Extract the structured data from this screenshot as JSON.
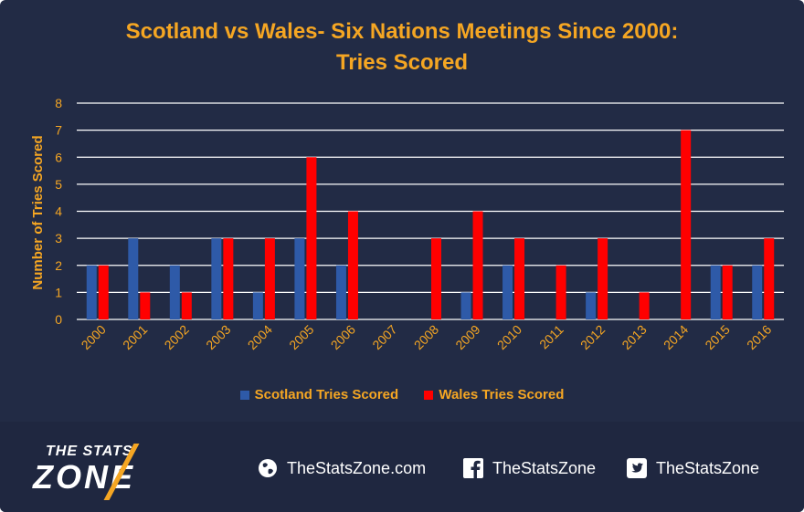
{
  "chart_data": {
    "type": "bar",
    "title": "Scotland vs Wales- Six Nations Meetings Since 2000:",
    "subtitle": "Tries Scored",
    "xlabel": "",
    "ylabel": "Number of Tries Scored",
    "ylim": [
      0,
      8
    ],
    "yticks": [
      "0",
      "1",
      "2",
      "3",
      "4",
      "5",
      "6",
      "7",
      "8"
    ],
    "categories": [
      "2000",
      "2001",
      "2002",
      "2003",
      "2004",
      "2005",
      "2006",
      "2007",
      "2008",
      "2009",
      "2010",
      "2011",
      "2012",
      "2013",
      "2014",
      "2015",
      "2016"
    ],
    "series": [
      {
        "name": "Scotland Tries Scored",
        "color": "#2e5aa8",
        "values": [
          2,
          3,
          2,
          3,
          1,
          3,
          2,
          0,
          0,
          1,
          2,
          0,
          1,
          0,
          0,
          2,
          2
        ]
      },
      {
        "name": "Wales Tries Scored",
        "color": "#ff0000",
        "values": [
          2,
          1,
          1,
          3,
          3,
          6,
          4,
          0,
          3,
          4,
          3,
          2,
          3,
          1,
          7,
          2,
          3
        ]
      }
    ],
    "grid": true,
    "legend_position": "bottom"
  },
  "colors": {
    "background": "#222b45",
    "accent": "#f5a623",
    "gridline": "#ffffff"
  },
  "footer": {
    "logo_top": "THE STATS",
    "logo_main": "ZONE",
    "website": "TheStatsZone.com",
    "facebook": "TheStatsZone",
    "twitter": "TheStatsZone",
    "icons": [
      "globe-icon",
      "facebook-icon",
      "twitter-icon"
    ]
  }
}
